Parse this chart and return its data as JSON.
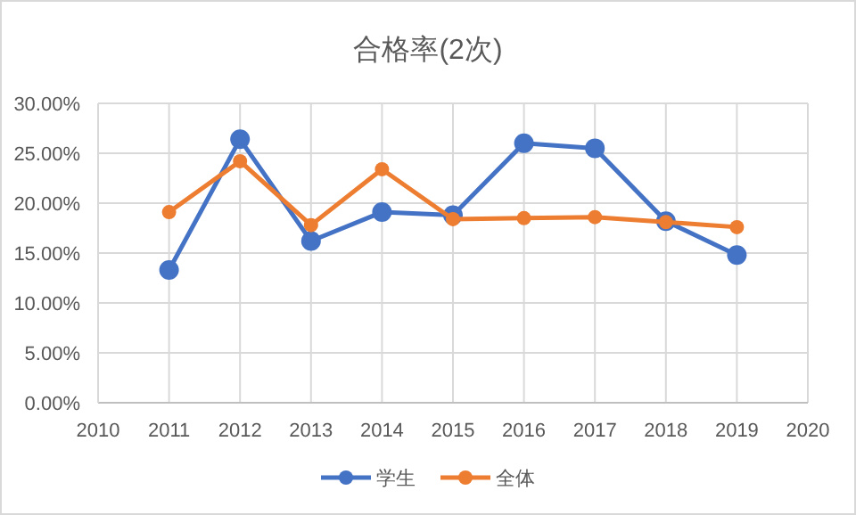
{
  "chart_data": {
    "type": "line",
    "title": "合格率(2次)",
    "x": [
      2011,
      2012,
      2013,
      2014,
      2015,
      2016,
      2017,
      2018,
      2019
    ],
    "series": [
      {
        "name": "学生",
        "color": "#4472c4",
        "values": [
          13.3,
          26.4,
          16.2,
          19.1,
          18.8,
          26.0,
          25.5,
          18.2,
          14.8
        ]
      },
      {
        "name": "全体",
        "color": "#ed7d31",
        "values": [
          19.1,
          24.2,
          17.8,
          23.4,
          18.4,
          18.5,
          18.6,
          18.1,
          17.6
        ]
      }
    ],
    "xlim": [
      2010,
      2020
    ],
    "xticks": [
      2010,
      2011,
      2012,
      2013,
      2014,
      2015,
      2016,
      2017,
      2018,
      2019,
      2020
    ],
    "ylim": [
      0,
      30
    ],
    "yticks": [
      {
        "value": 0,
        "label": "0.00%"
      },
      {
        "value": 5,
        "label": "5.00%"
      },
      {
        "value": 10,
        "label": "10.00%"
      },
      {
        "value": 15,
        "label": "15.00%"
      },
      {
        "value": 20,
        "label": "20.00%"
      },
      {
        "value": 25,
        "label": "25.00%"
      },
      {
        "value": 30,
        "label": "30.00%"
      }
    ],
    "grid": true,
    "legend": "bottom",
    "marker": "circle",
    "line_style": "solid"
  }
}
